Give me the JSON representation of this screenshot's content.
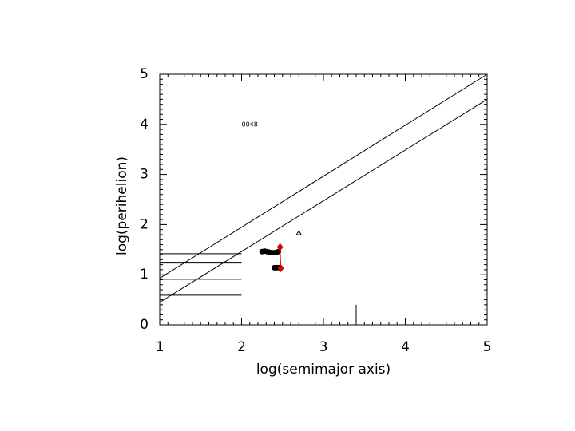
{
  "chart_data": {
    "type": "scatter",
    "xlabel": "log(semimajor axis)",
    "ylabel": "log(perihelion)",
    "xlim": [
      1,
      5
    ],
    "ylim": [
      0,
      5
    ],
    "xticks": [
      1,
      2,
      3,
      4,
      5
    ],
    "yticks": [
      0,
      1,
      2,
      3,
      4,
      5
    ],
    "minor_ticks": 10,
    "annotations": [
      {
        "text": "0048",
        "x": 2.0,
        "y": 4.0
      }
    ],
    "series": [
      {
        "color": "#000000",
        "style": "line",
        "width": 1,
        "x": [
          1,
          5
        ],
        "values": [
          0.93,
          5
        ]
      },
      {
        "color": "#000000",
        "style": "line",
        "width": 1,
        "x": [
          1,
          5
        ],
        "values": [
          0.45,
          4.5
        ]
      },
      {
        "color": "#000000",
        "style": "line",
        "width": 1,
        "x": [
          1,
          2
        ],
        "values": [
          1.42,
          1.42
        ]
      },
      {
        "color": "#000000",
        "style": "line",
        "width": 2,
        "x": [
          1,
          2
        ],
        "values": [
          1.24,
          1.24
        ]
      },
      {
        "color": "#000000",
        "style": "line",
        "width": 1,
        "x": [
          1,
          2
        ],
        "values": [
          0.91,
          0.91
        ]
      },
      {
        "color": "#000000",
        "style": "line",
        "width": 2,
        "x": [
          1,
          2
        ],
        "values": [
          0.6,
          0.6
        ]
      },
      {
        "color": "#000000",
        "style": "line",
        "width": 1,
        "x": [
          3.4,
          3.4
        ],
        "values": [
          0,
          0.4
        ]
      },
      {
        "color": "#000000",
        "style": "circle",
        "x": [
          2.25,
          2.28,
          2.31,
          2.34,
          2.37,
          2.4,
          2.43,
          2.45,
          2.4,
          2.43,
          2.46
        ],
        "values": [
          1.46,
          1.47,
          1.46,
          1.45,
          1.44,
          1.44,
          1.45,
          1.46,
          1.14,
          1.14,
          1.14
        ]
      },
      {
        "color": "#e00000",
        "style": "line-diamond",
        "width": 1,
        "x": [
          2.47,
          2.48
        ],
        "values": [
          1.55,
          1.13
        ]
      },
      {
        "color": "#000000",
        "style": "triangle",
        "x": [
          2.7
        ],
        "values": [
          1.83
        ]
      }
    ]
  }
}
